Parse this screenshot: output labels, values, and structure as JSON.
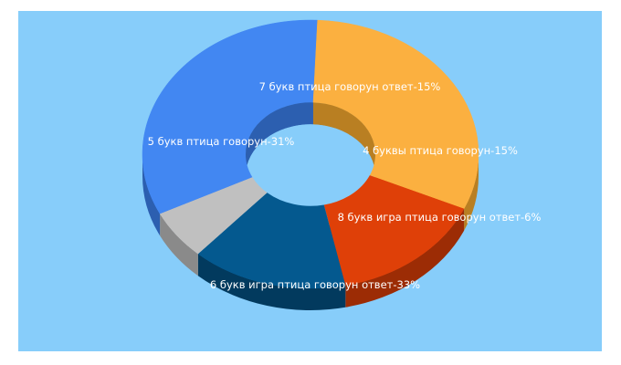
{
  "colors": {
    "background": "#87cdfa",
    "slices": [
      "#4287f2",
      "#fbb040",
      "#df4008",
      "#04598f",
      "#c0c0c0"
    ],
    "slice_sides": [
      "#2c5fb0",
      "#b97f22",
      "#9c2c05",
      "#023a5e",
      "#8a8a8a"
    ]
  },
  "chart_data": {
    "type": "pie",
    "style": "3d-donut",
    "title": "",
    "slices": [
      {
        "label": "6 букв игра птица говорун ответ-33%",
        "value": 33
      },
      {
        "label": "5 букв птица говорун-31%",
        "value": 31
      },
      {
        "label": "7 букв птица говорун ответ-15%",
        "value": 15
      },
      {
        "label": "4 буквы птица говорун-15%",
        "value": 15
      },
      {
        "label": "8 букв игра птица говорун ответ-6%",
        "value": 6
      }
    ]
  }
}
